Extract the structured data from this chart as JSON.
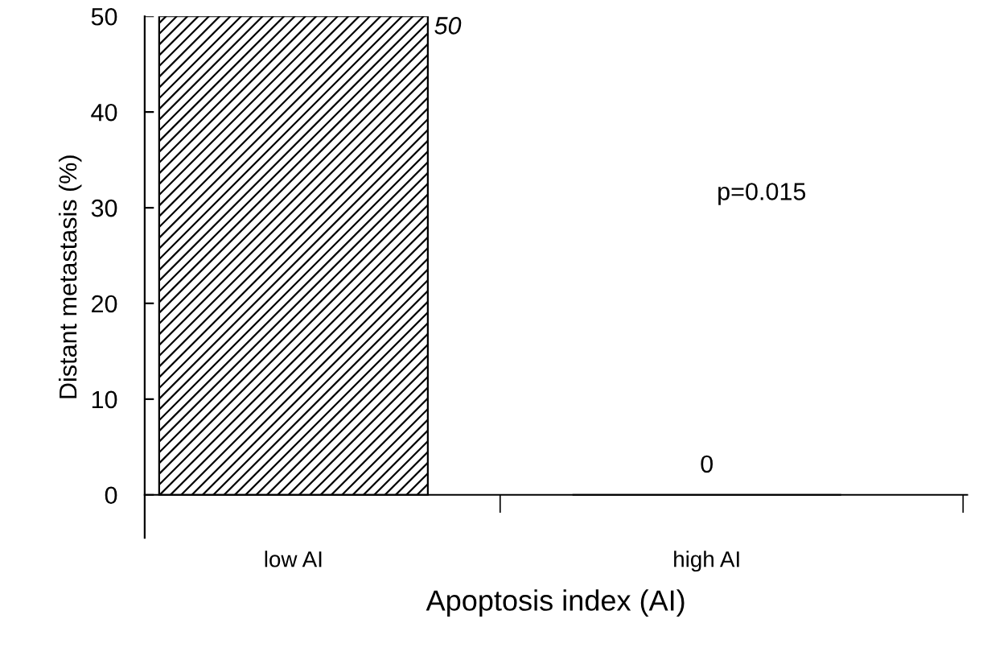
{
  "chart_data": {
    "type": "bar",
    "xlabel": "Apoptosis index (AI)",
    "ylabel": "Distant metastasis (%)",
    "categories": [
      "low AI",
      "high AI"
    ],
    "values": [
      50,
      0
    ],
    "color": "#000000",
    "data_labels": true,
    "annotations": [
      "p=0.015"
    ],
    "ylim": [
      -4.5,
      50
    ],
    "yticks": [
      0,
      10,
      20,
      30,
      40,
      50
    ],
    "grid": false,
    "legend": false
  }
}
